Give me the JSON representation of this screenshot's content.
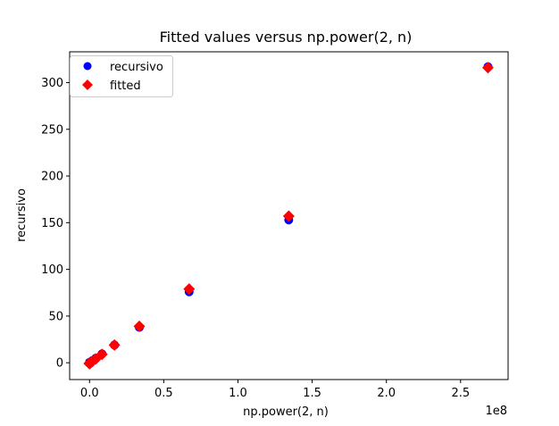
{
  "chart_data": {
    "type": "scatter",
    "title": "Fitted values versus np.power(2, n)",
    "xlabel": "np.power(2, n)",
    "ylabel": "recursivo",
    "x_offset_text": "1e8",
    "xlim": [
      -13400000.0,
      282000000.0
    ],
    "ylim": [
      -18.0,
      333.0
    ],
    "xticks": [
      0.0,
      0.5,
      1.0,
      1.5,
      2.0,
      2.5
    ],
    "xtick_labels": [
      "0.0",
      "0.5",
      "1.0",
      "1.5",
      "2.0",
      "2.5"
    ],
    "xtick_scale": 100000000.0,
    "yticks": [
      0,
      50,
      100,
      150,
      200,
      250,
      300
    ],
    "ytick_labels": [
      "0",
      "50",
      "100",
      "150",
      "200",
      "250",
      "300"
    ],
    "grid": false,
    "legend_position": "upper-left",
    "series": [
      {
        "name": "recursivo",
        "marker": "circle",
        "color": "#0000ff",
        "x": [
          1,
          2,
          4,
          8,
          16,
          32,
          64,
          128,
          256,
          512,
          1024,
          2048,
          4096,
          8192,
          16384,
          32768,
          65536,
          131072,
          262144,
          524288,
          1048576,
          2097152,
          4194304,
          8388608,
          16777216,
          33554432,
          67108864,
          134217728,
          268435456
        ],
        "y": [
          0,
          0,
          0,
          0,
          0,
          0,
          0,
          0,
          0,
          0,
          0,
          0,
          0,
          0,
          0,
          0,
          0.1,
          0.1,
          0.3,
          0.6,
          1.2,
          2.4,
          4.8,
          9.5,
          19,
          38,
          76,
          153,
          317
        ]
      },
      {
        "name": "fitted",
        "marker": "diamond",
        "color": "#ff0000",
        "x": [
          1,
          2,
          4,
          8,
          16,
          32,
          64,
          128,
          256,
          512,
          1024,
          2048,
          4096,
          8192,
          16384,
          32768,
          65536,
          131072,
          262144,
          524288,
          1048576,
          2097152,
          4194304,
          8388608,
          16777216,
          33554432,
          67108864,
          134217728,
          268435456
        ],
        "y": [
          -0.8,
          -0.8,
          -0.8,
          -0.8,
          -0.8,
          -0.8,
          -0.8,
          -0.8,
          -0.8,
          -0.8,
          -0.8,
          -0.8,
          -0.8,
          -0.8,
          -0.8,
          -0.8,
          -0.7,
          -0.6,
          -0.5,
          -0.2,
          0.4,
          1.6,
          4.1,
          9,
          19,
          39,
          79,
          157,
          316
        ]
      }
    ]
  }
}
